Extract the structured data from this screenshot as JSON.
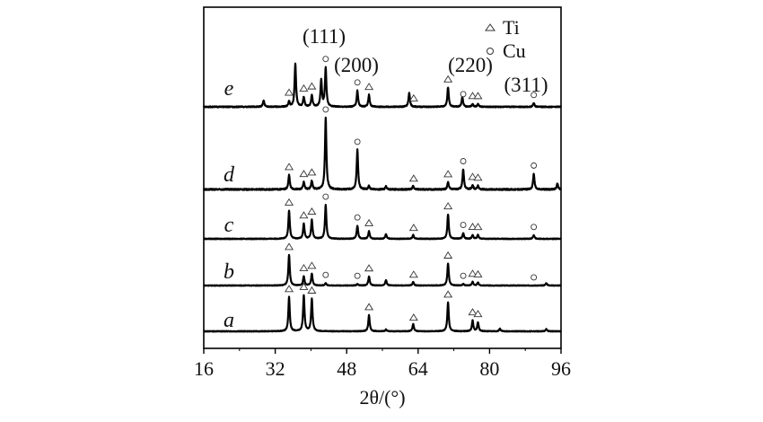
{
  "chart_data": {
    "type": "line",
    "xlabel": "2θ/(°)",
    "xlim": [
      16,
      96
    ],
    "x_ticks": [
      "16",
      "32",
      "48",
      "64",
      "80",
      "96"
    ],
    "grid": false,
    "legend_position": "top-right",
    "legend": [
      {
        "symbol": "triangle",
        "label": "Ti"
      },
      {
        "symbol": "circle",
        "label": "Cu"
      }
    ],
    "plane_labels": [
      {
        "text": "(111)",
        "x": 43.3
      },
      {
        "text": "(200)",
        "x": 50.4
      },
      {
        "text": "(220)",
        "x": 74.1
      },
      {
        "text": "(311)",
        "x": 89.9
      }
    ],
    "series": [
      {
        "label": "a",
        "peaks": [
          [
            35.1,
            0.95
          ],
          [
            38.4,
            1.0
          ],
          [
            40.2,
            0.9
          ],
          [
            53.0,
            0.45
          ],
          [
            56.8,
            0.05
          ],
          [
            62.9,
            0.2
          ],
          [
            70.7,
            0.8
          ],
          [
            76.2,
            0.3
          ],
          [
            77.4,
            0.25
          ],
          [
            82.3,
            0.07
          ],
          [
            92.7,
            0.06
          ]
        ],
        "markers": [
          {
            "symbol": "triangle",
            "x": 35.1
          },
          {
            "symbol": "triangle",
            "x": 38.4
          },
          {
            "symbol": "triangle",
            "x": 40.2
          },
          {
            "symbol": "triangle",
            "x": 53.0
          },
          {
            "symbol": "triangle",
            "x": 63.0
          },
          {
            "symbol": "triangle",
            "x": 70.7
          },
          {
            "symbol": "triangle",
            "x": 76.2
          },
          {
            "symbol": "triangle",
            "x": 77.4
          }
        ]
      },
      {
        "label": "b",
        "peaks": [
          [
            35.1,
            1.0
          ],
          [
            38.4,
            0.3
          ],
          [
            40.2,
            0.38
          ],
          [
            43.3,
            0.08
          ],
          [
            50.4,
            0.05
          ],
          [
            53.0,
            0.3
          ],
          [
            56.8,
            0.18
          ],
          [
            62.9,
            0.12
          ],
          [
            70.7,
            0.72
          ],
          [
            74.1,
            0.05
          ],
          [
            76.2,
            0.12
          ],
          [
            77.4,
            0.1
          ],
          [
            92.7,
            0.08
          ]
        ],
        "markers": [
          {
            "symbol": "triangle",
            "x": 35.1
          },
          {
            "symbol": "triangle",
            "x": 38.4
          },
          {
            "symbol": "triangle",
            "x": 40.2
          },
          {
            "symbol": "circle",
            "x": 43.3
          },
          {
            "symbol": "circle",
            "x": 50.4
          },
          {
            "symbol": "triangle",
            "x": 53.0
          },
          {
            "symbol": "triangle",
            "x": 63.0
          },
          {
            "symbol": "triangle",
            "x": 70.7
          },
          {
            "symbol": "circle",
            "x": 74.1
          },
          {
            "symbol": "triangle",
            "x": 76.2
          },
          {
            "symbol": "triangle",
            "x": 77.4
          },
          {
            "symbol": "circle",
            "x": 89.9
          }
        ]
      },
      {
        "label": "c",
        "peaks": [
          [
            35.1,
            0.75
          ],
          [
            38.4,
            0.4
          ],
          [
            40.2,
            0.5
          ],
          [
            43.3,
            0.9
          ],
          [
            50.4,
            0.35
          ],
          [
            53.0,
            0.2
          ],
          [
            56.8,
            0.12
          ],
          [
            62.9,
            0.1
          ],
          [
            70.7,
            0.65
          ],
          [
            74.1,
            0.15
          ],
          [
            76.2,
            0.1
          ],
          [
            77.4,
            0.1
          ],
          [
            89.9,
            0.1
          ]
        ],
        "markers": [
          {
            "symbol": "triangle",
            "x": 35.1
          },
          {
            "symbol": "triangle",
            "x": 38.4
          },
          {
            "symbol": "triangle",
            "x": 40.2
          },
          {
            "symbol": "circle",
            "x": 43.3
          },
          {
            "symbol": "circle",
            "x": 50.4
          },
          {
            "symbol": "triangle",
            "x": 53.0
          },
          {
            "symbol": "triangle",
            "x": 63.0
          },
          {
            "symbol": "triangle",
            "x": 70.7
          },
          {
            "symbol": "circle",
            "x": 74.1
          },
          {
            "symbol": "triangle",
            "x": 76.2
          },
          {
            "symbol": "triangle",
            "x": 77.4
          },
          {
            "symbol": "circle",
            "x": 89.9
          }
        ]
      },
      {
        "label": "d",
        "peaks": [
          [
            35.1,
            0.2
          ],
          [
            38.4,
            0.1
          ],
          [
            40.2,
            0.12
          ],
          [
            43.3,
            1.0
          ],
          [
            50.4,
            0.55
          ],
          [
            53.0,
            0.05
          ],
          [
            56.8,
            0.04
          ],
          [
            62.9,
            0.05
          ],
          [
            70.7,
            0.1
          ],
          [
            74.1,
            0.28
          ],
          [
            76.2,
            0.06
          ],
          [
            77.4,
            0.05
          ],
          [
            89.9,
            0.22
          ],
          [
            95.2,
            0.08
          ]
        ],
        "markers": [
          {
            "symbol": "triangle",
            "x": 35.1
          },
          {
            "symbol": "triangle",
            "x": 38.4
          },
          {
            "symbol": "triangle",
            "x": 40.2
          },
          {
            "symbol": "circle",
            "x": 43.3
          },
          {
            "symbol": "circle",
            "x": 50.4
          },
          {
            "symbol": "triangle",
            "x": 63.0
          },
          {
            "symbol": "triangle",
            "x": 70.7
          },
          {
            "symbol": "circle",
            "x": 74.1
          },
          {
            "symbol": "triangle",
            "x": 76.2
          },
          {
            "symbol": "triangle",
            "x": 77.4
          },
          {
            "symbol": "circle",
            "x": 89.9
          }
        ]
      },
      {
        "label": "e",
        "peaks": [
          [
            29.4,
            0.12
          ],
          [
            35.1,
            0.1
          ],
          [
            36.5,
            0.8
          ],
          [
            38.4,
            0.18
          ],
          [
            40.2,
            0.22
          ],
          [
            42.3,
            0.5
          ],
          [
            43.3,
            0.72
          ],
          [
            50.4,
            0.3
          ],
          [
            53.0,
            0.22
          ],
          [
            62.0,
            0.26
          ],
          [
            70.7,
            0.36
          ],
          [
            73.9,
            0.18
          ],
          [
            76.2,
            0.05
          ],
          [
            77.4,
            0.05
          ],
          [
            89.9,
            0.07
          ]
        ],
        "markers": [
          {
            "symbol": "triangle",
            "x": 35.1
          },
          {
            "symbol": "triangle",
            "x": 38.4
          },
          {
            "symbol": "triangle",
            "x": 40.2
          },
          {
            "symbol": "circle",
            "x": 43.3
          },
          {
            "symbol": "circle",
            "x": 50.4
          },
          {
            "symbol": "triangle",
            "x": 53.0
          },
          {
            "symbol": "triangle",
            "x": 63.0
          },
          {
            "symbol": "triangle",
            "x": 70.7
          },
          {
            "symbol": "circle",
            "x": 74.1
          },
          {
            "symbol": "triangle",
            "x": 76.2
          },
          {
            "symbol": "triangle",
            "x": 77.4
          },
          {
            "symbol": "circle",
            "x": 89.9
          }
        ]
      }
    ]
  }
}
